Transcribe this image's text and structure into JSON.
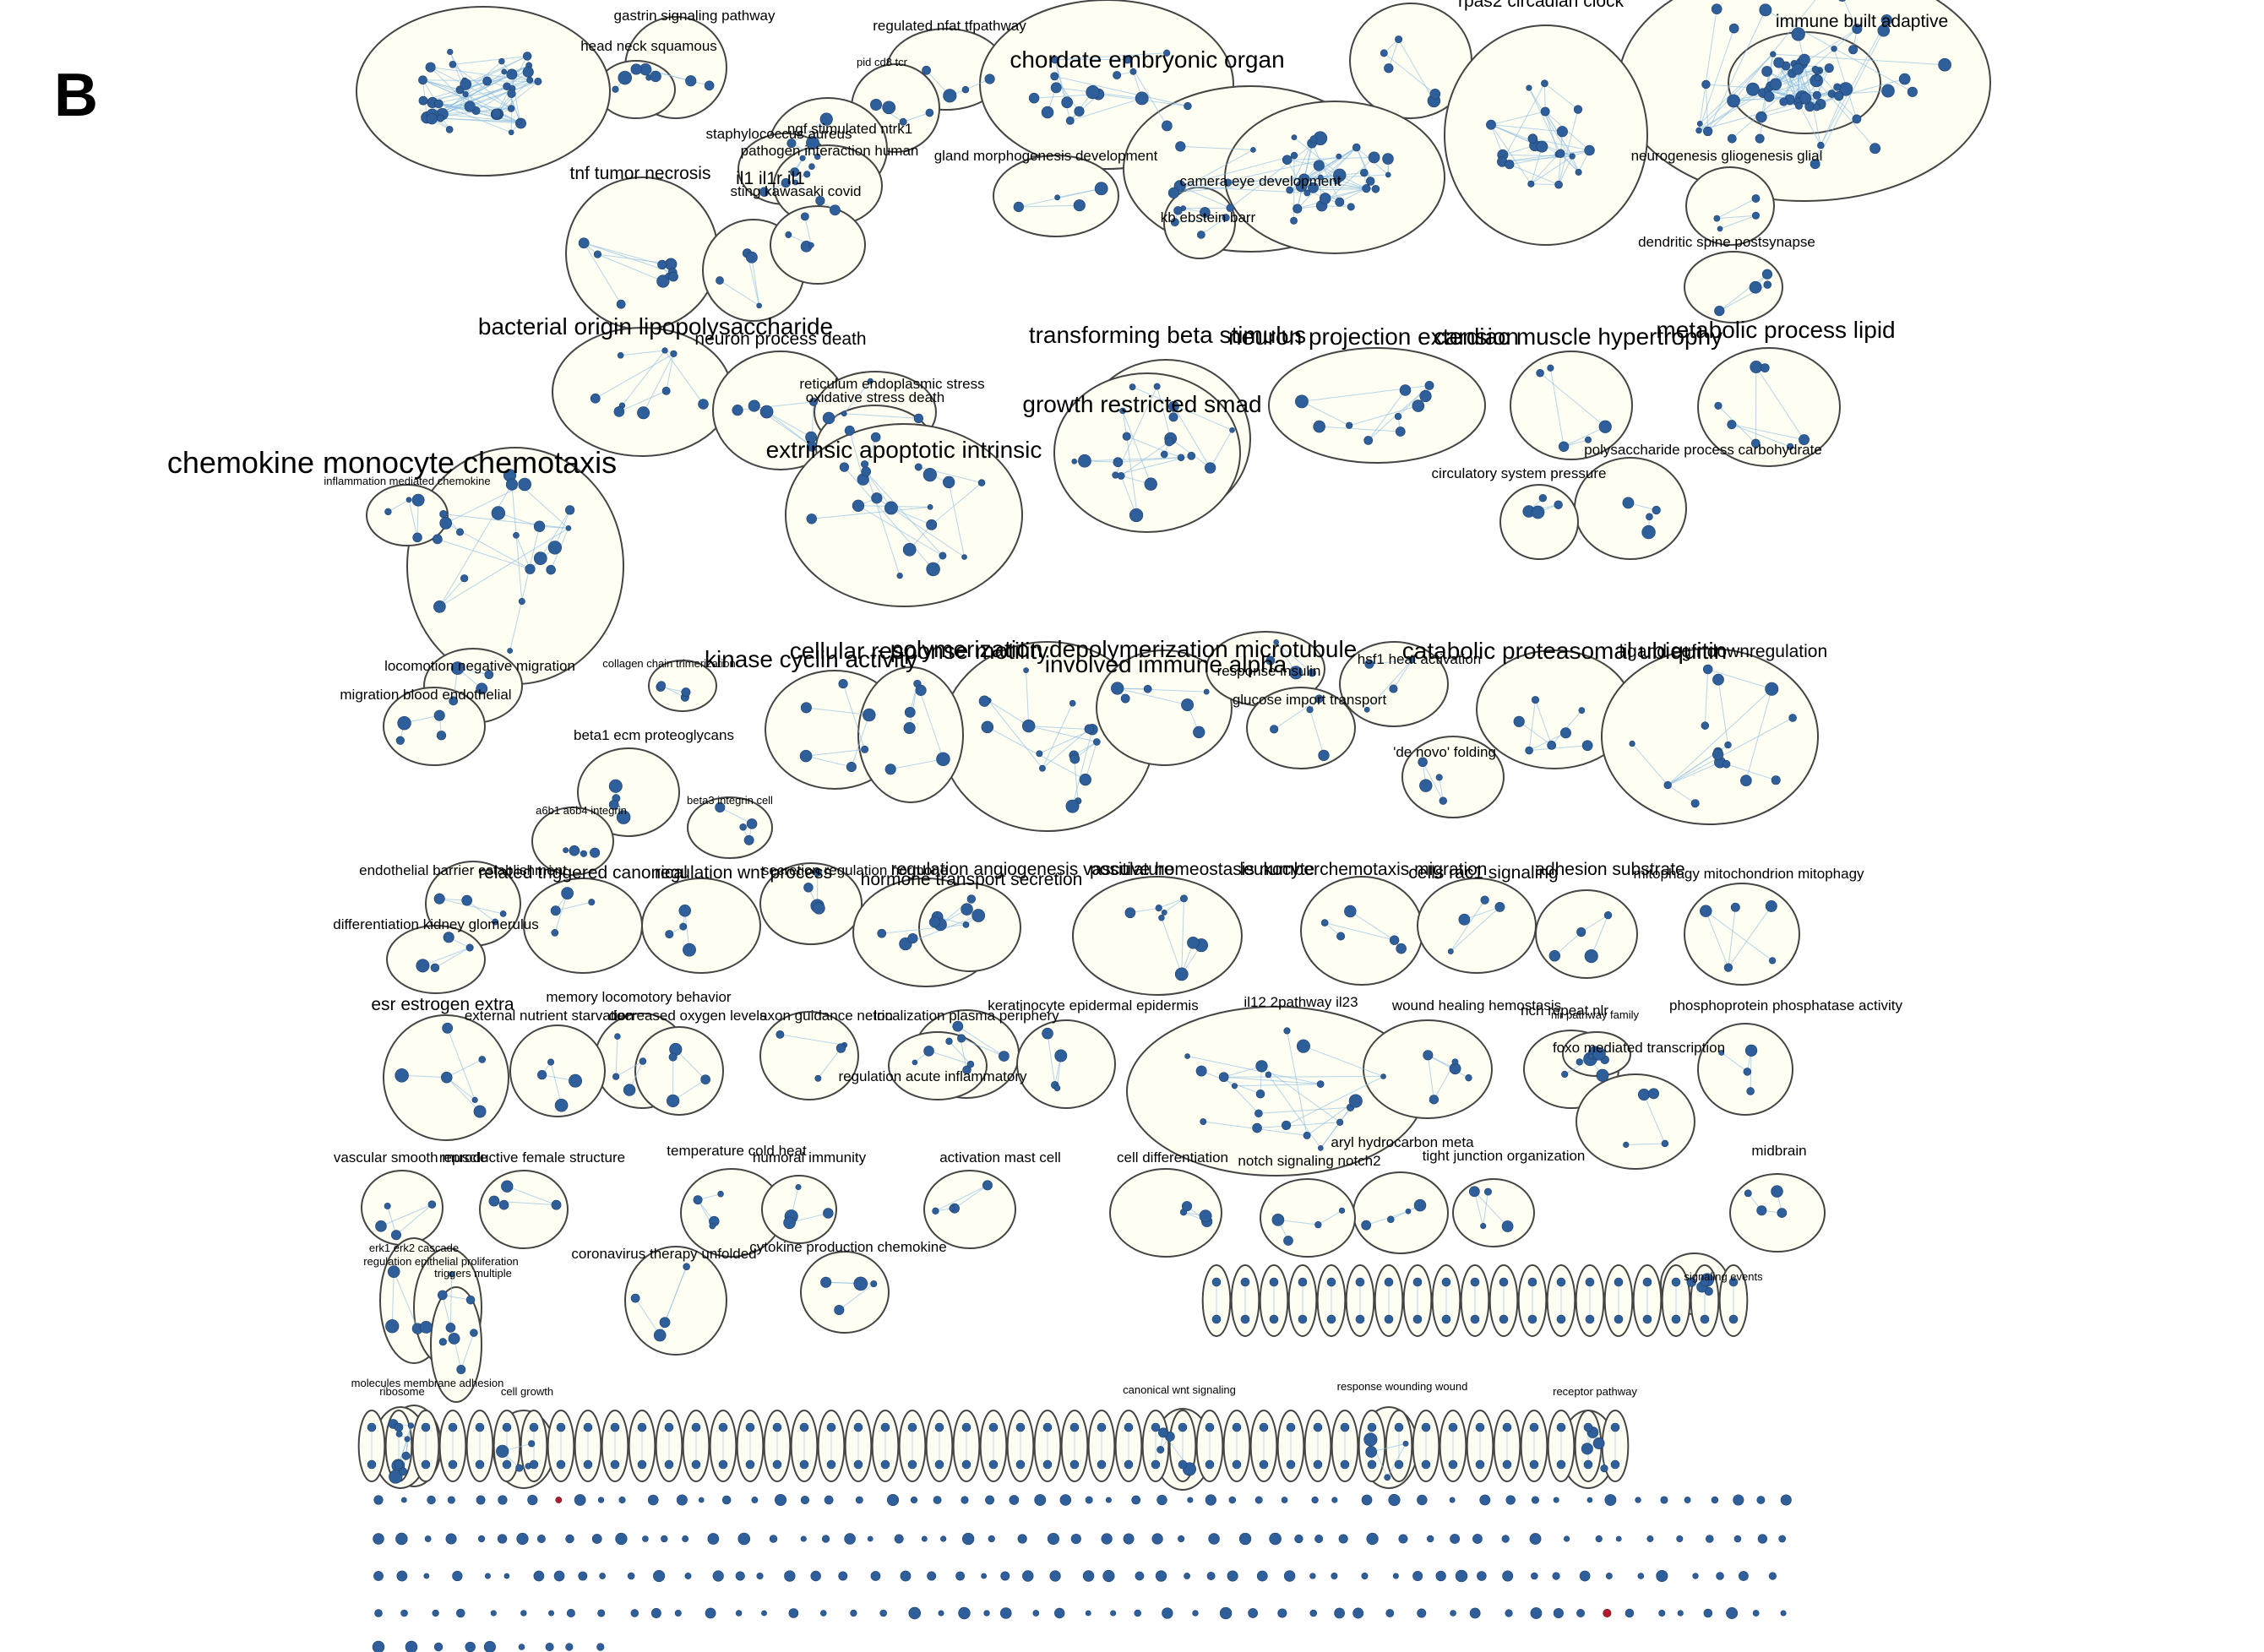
{
  "panel": {
    "letter": "B"
  },
  "colors": {
    "node": "#2f5f9a",
    "node_highlight": "#b01c2e",
    "edge": "#8fbfe3",
    "cluster_fill": "#fefef2",
    "cluster_stroke": "#444444"
  },
  "clusters": [
    {
      "label": "gastrin signaling pathway",
      "size": "s"
    },
    {
      "label": "regulated nfat tfpathway",
      "size": "s"
    },
    {
      "label": "rpas2 circadian clock",
      "size": "m"
    },
    {
      "label": "immune built adaptive",
      "size": "m"
    },
    {
      "label": "head neck squamous",
      "size": "s"
    },
    {
      "label": "pid cd8 tcr",
      "size": "xs"
    },
    {
      "label": "chordate embryonic organ",
      "size": "l"
    },
    {
      "label": "ngf stimulated ntrk1",
      "size": "s"
    },
    {
      "label": "staphylococcus aureus",
      "size": "s"
    },
    {
      "label": "pathogen interaction human",
      "size": "s"
    },
    {
      "label": "gland morphogenesis development",
      "size": "s"
    },
    {
      "label": "neurogenesis gliogenesis glial",
      "size": "s"
    },
    {
      "label": "tnf tumor necrosis",
      "size": "m"
    },
    {
      "label": "il1 il1r il1",
      "size": "m"
    },
    {
      "label": "camera eye development",
      "size": "s"
    },
    {
      "label": "sting kawasaki covid",
      "size": "s"
    },
    {
      "label": "kb ebstein barr",
      "size": "s"
    },
    {
      "label": "dendritic spine postsynapse",
      "size": "s"
    },
    {
      "label": "bacterial origin lipopolysaccharide",
      "size": "l"
    },
    {
      "label": "neuron process death",
      "size": "m"
    },
    {
      "label": "transforming beta stimulus",
      "size": "l"
    },
    {
      "label": "neuron projection extension",
      "size": "l"
    },
    {
      "label": "cardiac muscle hypertrophy",
      "size": "l"
    },
    {
      "label": "metabolic process lipid",
      "size": "l"
    },
    {
      "label": "reticulum endoplasmic stress",
      "size": "s"
    },
    {
      "label": "oxidative stress death",
      "size": "s"
    },
    {
      "label": "growth restricted smad",
      "size": "l"
    },
    {
      "label": "extrinsic apoptotic intrinsic",
      "size": "l"
    },
    {
      "label": "polysaccharide process carbohydrate",
      "size": "s"
    },
    {
      "label": "chemokine monocyte chemotaxis",
      "size": "xl"
    },
    {
      "label": "circulatory system pressure",
      "size": "s"
    },
    {
      "label": "inflammation mediated chemokine",
      "size": "xs"
    },
    {
      "label": "polymerization depolymerization microtubule",
      "size": "l"
    },
    {
      "label": "kinase cyclin activity",
      "size": "l"
    },
    {
      "label": "cellular response motility",
      "size": "l"
    },
    {
      "label": "involved immune alpha",
      "size": "l"
    },
    {
      "label": "catabolic proteasomal ubiquitin",
      "size": "l"
    },
    {
      "label": "ligand egfr downregulation",
      "size": "m"
    },
    {
      "label": "hsf1 heat activation",
      "size": "s"
    },
    {
      "label": "response insulin",
      "size": "s"
    },
    {
      "label": "locomotion negative migration",
      "size": "s"
    },
    {
      "label": "collagen chain trimerization",
      "size": "xs"
    },
    {
      "label": "glucose import transport",
      "size": "s"
    },
    {
      "label": "migration blood endothelial",
      "size": "s"
    },
    {
      "label": "beta1 ecm proteoglycans",
      "size": "s"
    },
    {
      "label": "'de novo' folding",
      "size": "s"
    },
    {
      "label": "beta3 integrin cell",
      "size": "xs"
    },
    {
      "label": "a6b1 a6b4 integrin",
      "size": "xs"
    },
    {
      "label": "endothelial barrier establishment",
      "size": "s"
    },
    {
      "label": "related triggered canonical",
      "size": "m"
    },
    {
      "label": "regulation wnt process",
      "size": "m"
    },
    {
      "label": "secretion regulation hormone",
      "size": "s"
    },
    {
      "label": "regulation angiogenesis vasculature",
      "size": "m"
    },
    {
      "label": "hormone transport secretion",
      "size": "m"
    },
    {
      "label": "positive homeostasis number",
      "size": "m"
    },
    {
      "label": "leukocyte chemotaxis migration",
      "size": "m"
    },
    {
      "label": "cells rac1 signaling",
      "size": "m"
    },
    {
      "label": "adhesion substrate",
      "size": "m"
    },
    {
      "label": "mitophagy mitochondrion mitophagy",
      "size": "s"
    },
    {
      "label": "differentiation kidney glomerulus",
      "size": "s"
    },
    {
      "label": "esr estrogen extra",
      "size": "m"
    },
    {
      "label": "memory locomotory behavior",
      "size": "s"
    },
    {
      "label": "external nutrient starvation",
      "size": "s"
    },
    {
      "label": "decreased oxygen levels",
      "size": "s"
    },
    {
      "label": "axon guidance netrin",
      "size": "s"
    },
    {
      "label": "localization plasma periphery",
      "size": "s"
    },
    {
      "label": "keratinocyte epidermal epidermis",
      "size": "s"
    },
    {
      "label": "il12 2pathway il23",
      "size": "s"
    },
    {
      "label": "wound healing hemostasis",
      "size": "s"
    },
    {
      "label": "rich repeat nlr",
      "size": "s"
    },
    {
      "label": "nlr pathway family",
      "size": "xs"
    },
    {
      "label": "phosphoprotein phosphatase activity",
      "size": "s"
    },
    {
      "label": "regulation acute inflammatory",
      "size": "s"
    },
    {
      "label": "foxo mediated transcription",
      "size": "s"
    },
    {
      "label": "vascular smooth muscle",
      "size": "s"
    },
    {
      "label": "reproductive female structure",
      "size": "s"
    },
    {
      "label": "temperature cold heat",
      "size": "s"
    },
    {
      "label": "humoral immunity",
      "size": "s"
    },
    {
      "label": "activation mast cell",
      "size": "s"
    },
    {
      "label": "cell differentiation",
      "size": "s"
    },
    {
      "label": "aryl hydrocarbon meta",
      "size": "s"
    },
    {
      "label": "notch signaling notch2",
      "size": "s"
    },
    {
      "label": "tight junction organization",
      "size": "s"
    },
    {
      "label": "midbrain",
      "size": "s"
    },
    {
      "label": "erk1 erk2 cascade",
      "size": "xs"
    },
    {
      "label": "regulation epithelial proliferation",
      "size": "xs"
    },
    {
      "label": "coronavirus therapy unfolded",
      "size": "s"
    },
    {
      "label": "cytokine production chemokine",
      "size": "s"
    },
    {
      "label": "triggers multiple",
      "size": "xs"
    },
    {
      "label": "molecules membrane adhesion",
      "size": "xs"
    },
    {
      "label": "ribosome",
      "size": "xs"
    },
    {
      "label": "cell growth",
      "size": "xs"
    },
    {
      "label": "canonical wnt signaling",
      "size": "xs"
    },
    {
      "label": "response wounding wound",
      "size": "xs"
    },
    {
      "label": "receptor pathway",
      "size": "xs"
    },
    {
      "label": "signaling events",
      "size": "xs"
    }
  ]
}
